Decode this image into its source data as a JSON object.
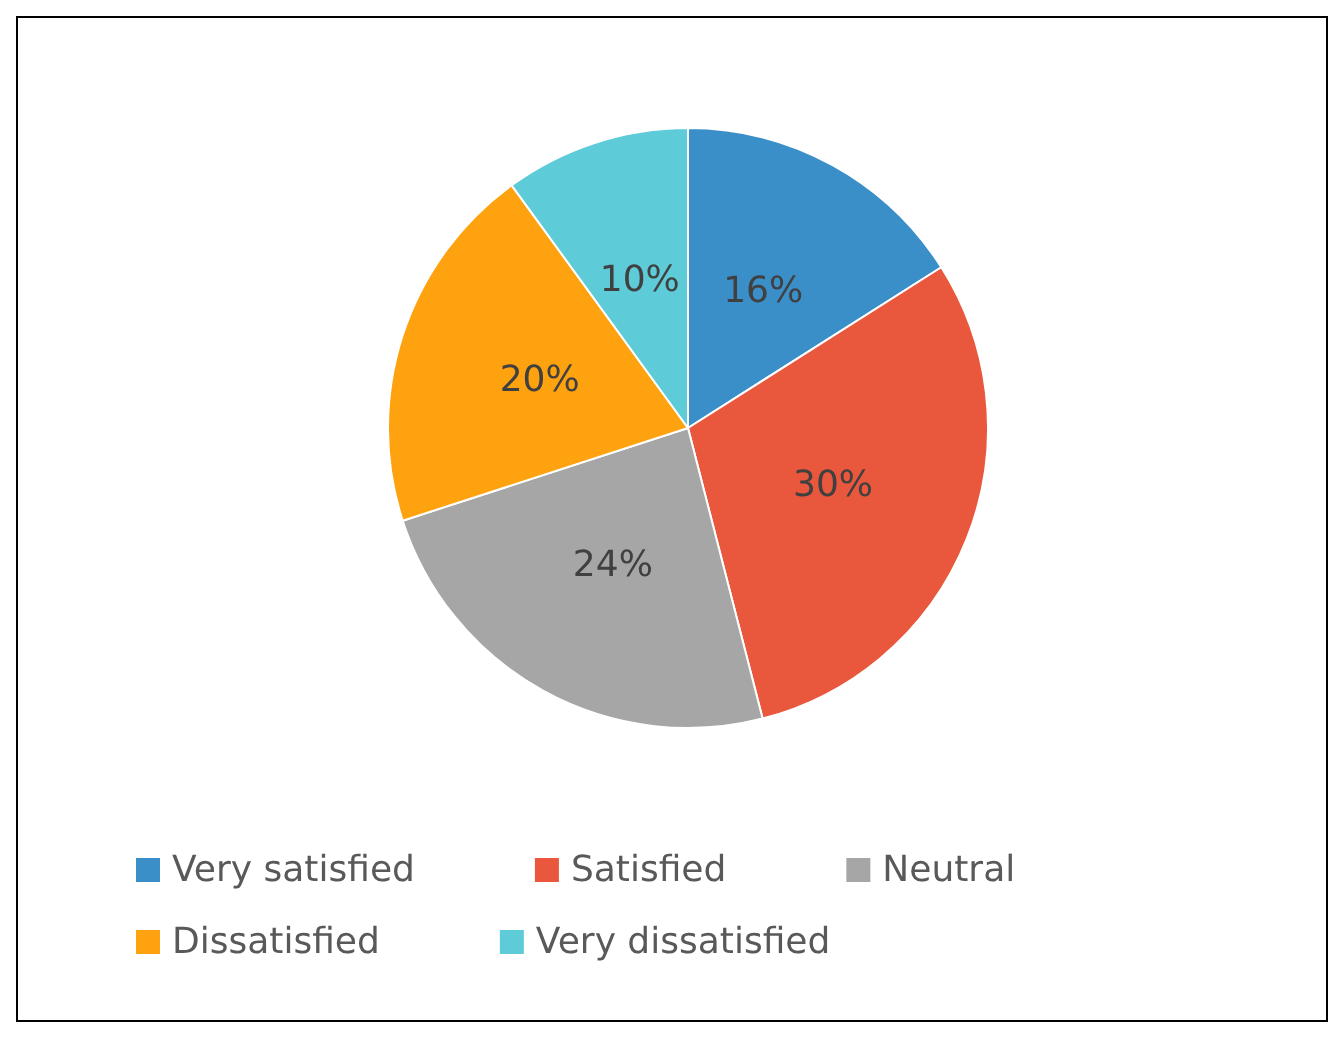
{
  "chart_data": {
    "type": "pie",
    "categories": [
      "Very satisfied",
      "Satisfied",
      "Neutral",
      "Dissatisfied",
      "Very dissatisfied"
    ],
    "values": [
      16,
      30,
      24,
      20,
      10
    ],
    "colors": [
      "#3b8fc9",
      "#e9573c",
      "#a6a6a6",
      "#ffa20f",
      "#5dcbd8"
    ],
    "value_labels": [
      "16%",
      "30%",
      "24%",
      "20%",
      "10%"
    ],
    "legend": "bottom"
  }
}
